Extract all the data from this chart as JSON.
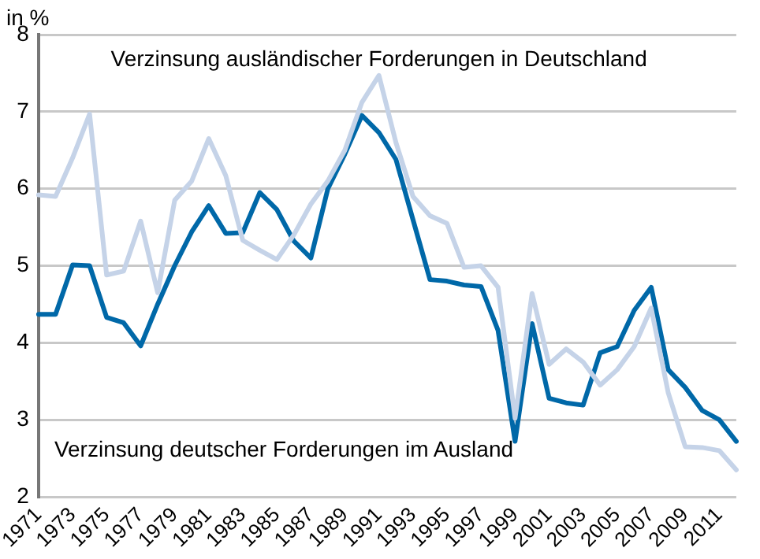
{
  "chart_data": {
    "type": "line",
    "ylabel": "in %",
    "categories": [
      "1971",
      null,
      "1973",
      null,
      "1975",
      null,
      "1977",
      null,
      "1979",
      null,
      "1981",
      null,
      "1983",
      null,
      "1985",
      null,
      "1987",
      null,
      "1989",
      null,
      "1991",
      null,
      "1993",
      null,
      "1995",
      null,
      "1997",
      null,
      "1999",
      null,
      "2001",
      null,
      "2003",
      null,
      "2005",
      null,
      "2007",
      null,
      "2009",
      null,
      "2011",
      null
    ],
    "series": [
      {
        "name": "Verzinsung ausländischer Forderungen in Deutschland",
        "color": "#c5d3e8",
        "values": [
          5.92,
          5.9,
          6.4,
          6.97,
          4.88,
          4.93,
          5.58,
          4.65,
          5.85,
          6.1,
          6.65,
          6.17,
          5.33,
          5.2,
          5.08,
          5.4,
          5.8,
          6.1,
          6.5,
          7.12,
          7.47,
          6.6,
          5.9,
          5.65,
          5.55,
          4.98,
          5.0,
          4.72,
          3.02,
          4.64,
          3.72,
          3.92,
          3.75,
          3.45,
          3.65,
          3.95,
          4.45,
          3.35,
          2.65,
          2.64,
          2.6,
          2.35
        ]
      },
      {
        "name": "Verzinsung deutscher Forderungen im Ausland",
        "color": "#0068a8",
        "values": [
          4.37,
          4.37,
          5.01,
          5.0,
          4.33,
          4.26,
          3.96,
          4.5,
          5.0,
          5.44,
          5.78,
          5.42,
          5.43,
          5.95,
          5.73,
          5.32,
          5.1,
          6.0,
          6.45,
          6.95,
          6.73,
          6.38,
          5.6,
          4.82,
          4.8,
          4.75,
          4.73,
          4.16,
          2.72,
          4.25,
          3.28,
          3.22,
          3.19,
          3.87,
          3.95,
          4.42,
          4.72,
          3.65,
          3.42,
          3.12,
          3.0,
          2.72
        ]
      }
    ],
    "ylim": [
      2,
      8
    ],
    "yticks": [
      2,
      3,
      4,
      5,
      6,
      7,
      8
    ],
    "grid": "y",
    "legend": false,
    "marker": "none",
    "line_style": "solid"
  }
}
